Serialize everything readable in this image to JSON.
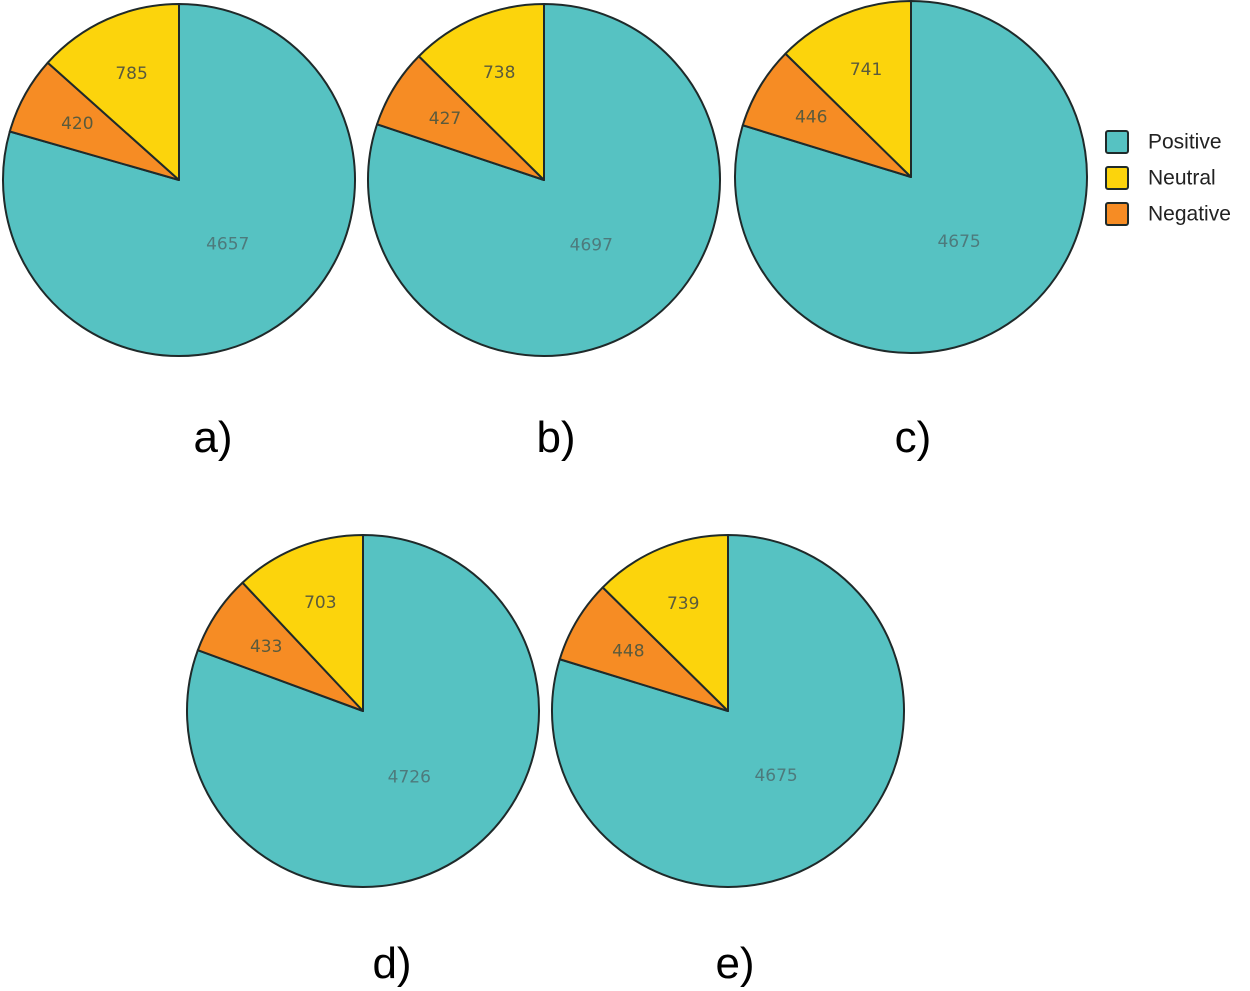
{
  "chart_data": [
    {
      "type": "pie",
      "panel": "a)",
      "slices": [
        {
          "label": "Positive",
          "value": 4657
        },
        {
          "label": "Negative",
          "value": 420
        },
        {
          "label": "Neutral",
          "value": 785
        }
      ]
    },
    {
      "type": "pie",
      "panel": "b)",
      "slices": [
        {
          "label": "Positive",
          "value": 4697
        },
        {
          "label": "Negative",
          "value": 427
        },
        {
          "label": "Neutral",
          "value": 738
        }
      ]
    },
    {
      "type": "pie",
      "panel": "c)",
      "slices": [
        {
          "label": "Positive",
          "value": 4675
        },
        {
          "label": "Negative",
          "value": 446
        },
        {
          "label": "Neutral",
          "value": 741
        }
      ]
    },
    {
      "type": "pie",
      "panel": "d)",
      "slices": [
        {
          "label": "Positive",
          "value": 4726
        },
        {
          "label": "Negative",
          "value": 433
        },
        {
          "label": "Neutral",
          "value": 703
        }
      ]
    },
    {
      "type": "pie",
      "panel": "e)",
      "slices": [
        {
          "label": "Positive",
          "value": 4675
        },
        {
          "label": "Negative",
          "value": 448
        },
        {
          "label": "Neutral",
          "value": 739
        }
      ]
    }
  ],
  "legend": {
    "placement": "right",
    "items": [
      {
        "label": "Positive",
        "color": "#56c2c2"
      },
      {
        "label": "Neutral",
        "color": "#fcd40c"
      },
      {
        "label": "Negative",
        "color": "#f68c24"
      }
    ]
  }
}
